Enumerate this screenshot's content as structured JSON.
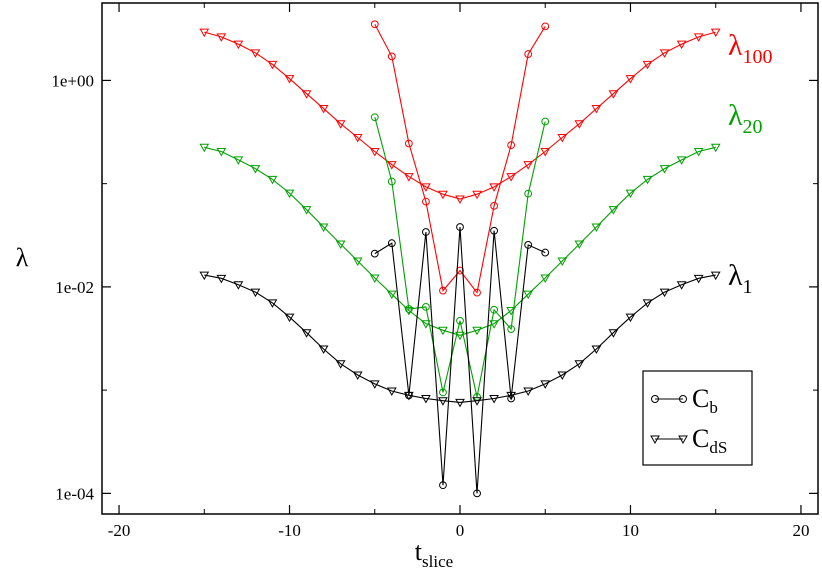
{
  "chart_data": {
    "type": "line",
    "xlabel": "t",
    "xlabel_sub": "slice",
    "ylabel": "λ",
    "xlim": [
      -21,
      21
    ],
    "ylim_log10": [
      -4.2,
      0.75
    ],
    "y_scale": "log",
    "x_ticks": [
      -20,
      -10,
      0,
      10,
      20
    ],
    "x_tick_labels": [
      "-20",
      "-10",
      "0",
      "10",
      "20"
    ],
    "y_ticks": [
      0.0001,
      0.01,
      1
    ],
    "y_tick_labels": [
      "1e-04",
      "1e-02",
      "1e+00"
    ],
    "grid": false,
    "legend": {
      "position": "bottom-right",
      "entries": [
        {
          "label": "C",
          "sub": "b",
          "marker": "circle"
        },
        {
          "label": "C",
          "sub": "dS",
          "marker": "triangle-down"
        }
      ]
    },
    "series": [
      {
        "label": "λ",
        "label_sub": "100",
        "color": "#ff0000",
        "marker": "triangle-down",
        "x": [
          -15,
          -14,
          -13,
          -12,
          -11,
          -10,
          -9,
          -8,
          -7,
          -6,
          -5,
          -4,
          -3,
          -2,
          -1,
          0,
          1,
          2,
          3,
          4,
          5,
          6,
          7,
          8,
          9,
          10,
          11,
          12,
          13,
          14,
          15
        ],
        "y": [
          2.94,
          2.64,
          2.25,
          1.85,
          1.43,
          1.04,
          0.743,
          0.534,
          0.38,
          0.28,
          0.205,
          0.153,
          0.117,
          0.093,
          0.079,
          0.071,
          0.079,
          0.093,
          0.117,
          0.153,
          0.205,
          0.28,
          0.38,
          0.534,
          0.743,
          1.04,
          1.43,
          1.85,
          2.25,
          2.64,
          2.94
        ]
      },
      {
        "label": "λ",
        "label_sub": "100",
        "color": "#ff0000",
        "marker": "circle",
        "x": [
          -5,
          -4,
          -3,
          -2,
          -1,
          0,
          1,
          2,
          3,
          4,
          5
        ],
        "y": [
          3.5,
          1.71,
          0.245,
          0.067,
          0.0092,
          0.0144,
          0.0088,
          0.061,
          0.236,
          1.8,
          3.34
        ]
      },
      {
        "label": "λ",
        "label_sub": "20",
        "color": "#00a000",
        "marker": "triangle-down",
        "x": [
          -15,
          -14,
          -13,
          -12,
          -11,
          -10,
          -9,
          -8,
          -7,
          -6,
          -5,
          -4,
          -3,
          -2,
          -1,
          0,
          1,
          2,
          3,
          4,
          5,
          6,
          7,
          8,
          9,
          10,
          11,
          12,
          13,
          14,
          15
        ],
        "y": [
          0.225,
          0.205,
          0.17,
          0.14,
          0.11,
          0.081,
          0.056,
          0.038,
          0.026,
          0.0178,
          0.0122,
          0.0085,
          0.0059,
          0.0044,
          0.0038,
          0.0034,
          0.0038,
          0.0044,
          0.0059,
          0.0085,
          0.0122,
          0.0178,
          0.026,
          0.038,
          0.056,
          0.081,
          0.11,
          0.14,
          0.17,
          0.205,
          0.225
        ]
      },
      {
        "label": "λ",
        "label_sub": "20",
        "color": "#00a000",
        "marker": "circle",
        "x": [
          -5,
          -4,
          -3,
          -2,
          -1,
          0,
          1,
          2,
          3,
          4,
          5
        ],
        "y": [
          0.44,
          0.105,
          0.0061,
          0.0064,
          0.00095,
          0.0047,
          0.00086,
          0.006,
          0.0039,
          0.08,
          0.4
        ]
      },
      {
        "label": "λ",
        "label_sub": "1",
        "color": "#000000",
        "marker": "triangle-down",
        "x": [
          -15,
          -14,
          -13,
          -12,
          -11,
          -10,
          -9,
          -8,
          -7,
          -6,
          -5,
          -4,
          -3,
          -2,
          -1,
          0,
          1,
          2,
          3,
          4,
          5,
          6,
          7,
          8,
          9,
          10,
          11,
          12,
          13,
          14,
          15
        ],
        "y": [
          0.013,
          0.0121,
          0.0105,
          0.0089,
          0.007,
          0.0051,
          0.0036,
          0.0025,
          0.0018,
          0.0014,
          0.00115,
          0.00098,
          0.00089,
          0.00083,
          0.00079,
          0.00076,
          0.00079,
          0.00083,
          0.00089,
          0.00098,
          0.00115,
          0.0014,
          0.0018,
          0.0025,
          0.0036,
          0.0051,
          0.007,
          0.0089,
          0.0105,
          0.0121,
          0.013
        ]
      },
      {
        "label": "λ",
        "label_sub": "1",
        "color": "#000000",
        "marker": "circle",
        "x": [
          -5,
          -4,
          -3,
          -2,
          -1,
          0,
          1,
          2,
          3,
          4,
          5
        ],
        "y": [
          0.021,
          0.0265,
          0.00089,
          0.034,
          0.00012,
          0.038,
          0.0001,
          0.035,
          0.00083,
          0.0255,
          0.0215
        ]
      }
    ],
    "series_labels": [
      {
        "label": "λ",
        "sub": "100",
        "color": "#ff0000"
      },
      {
        "label": "λ",
        "sub": "20",
        "color": "#00a000"
      },
      {
        "label": "λ",
        "sub": "1",
        "color": "#000000"
      }
    ]
  }
}
